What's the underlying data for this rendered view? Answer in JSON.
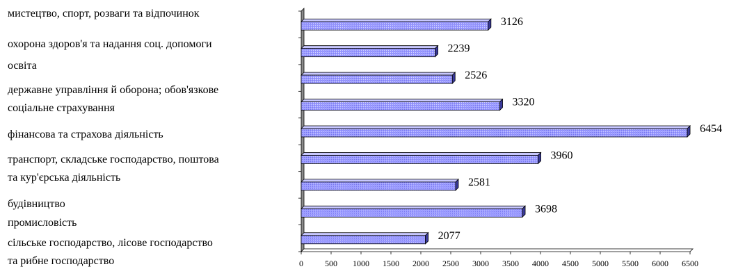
{
  "chart_data": {
    "type": "bar",
    "orientation": "horizontal",
    "title": "",
    "xlabel": "",
    "ylabel": "",
    "xlim": [
      0,
      6500
    ],
    "x_ticks": [
      "0",
      "500",
      "1000",
      "1500",
      "2000",
      "2500",
      "3000",
      "3500",
      "4000",
      "4500",
      "5000",
      "5500",
      "6000",
      "6500"
    ],
    "grid": false,
    "legend": "none",
    "bar_color": "#9999ff",
    "category_label_lines": [
      "мистецтво, спорт, розваги та відпочинок",
      "охорона здоров'я та надання соц. допомоги",
      "освіта",
      "державне управління й оборона; обов'язкове",
      "соціальне страхування",
      "фінансова та страхова діяльність",
      "транспорт, складське господарство, поштова",
      "та кур'єрська діяльність",
      "будівництво",
      "промисловість",
      "сільське господарство, лісове господарство",
      "та рибне господарство"
    ],
    "values": [
      3126,
      2239,
      2526,
      3320,
      6454,
      3960,
      2581,
      3698,
      2077
    ],
    "value_labels": [
      "3126",
      "2239",
      "2526",
      "3320",
      "6454",
      "3960",
      "2581",
      "3698",
      "2077"
    ]
  }
}
